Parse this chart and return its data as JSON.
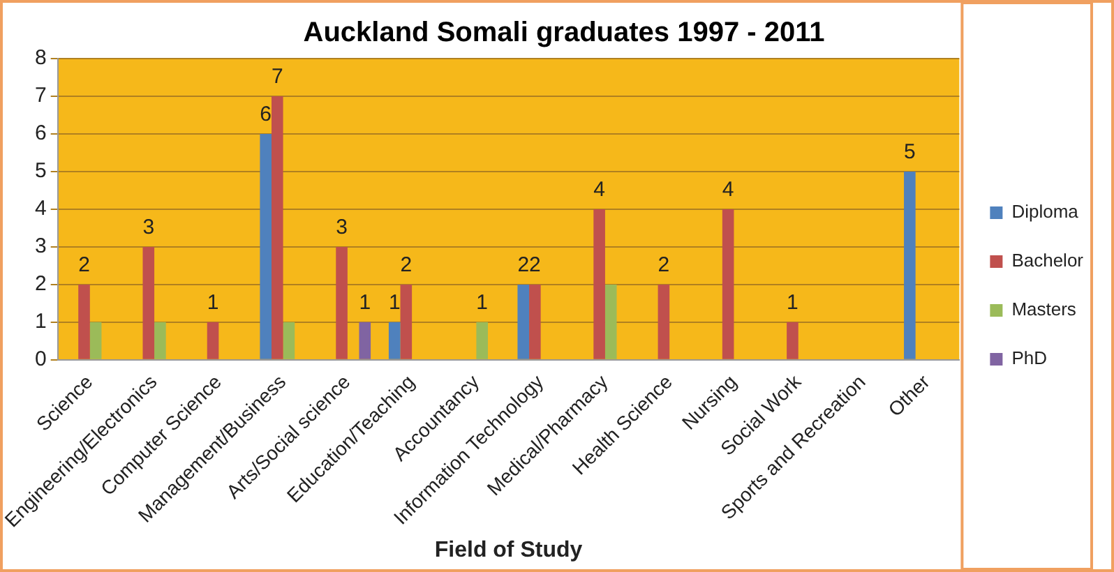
{
  "chart_data": {
    "type": "bar",
    "title": "Auckland Somali graduates 1997 - 2011",
    "xlabel": "Field of Study",
    "categories": [
      "Science",
      "Engineering/Electronics",
      "Computer Science",
      "Management/Business",
      "Arts/Social science",
      "Education/Teaching",
      "Accountancy",
      "Information Technology",
      "Medical/Pharmacy",
      "Health Science",
      "Nursing",
      "Social Work",
      "Sports and Recreation",
      "Other"
    ],
    "series": [
      {
        "name": "Diploma",
        "color": "#4f81bd",
        "values": [
          null,
          null,
          null,
          6,
          null,
          1,
          null,
          2,
          null,
          null,
          null,
          null,
          null,
          5
        ],
        "value_labels": [
          null,
          null,
          null,
          "6",
          null,
          "1",
          null,
          "2",
          null,
          null,
          null,
          null,
          null,
          "5"
        ]
      },
      {
        "name": "Bachelor",
        "color": "#c0504d",
        "values": [
          2,
          3,
          1,
          7,
          3,
          2,
          null,
          2,
          4,
          2,
          4,
          1,
          null,
          null
        ],
        "value_labels": [
          "2",
          "3",
          "1",
          "7",
          "3",
          "2",
          null,
          "2",
          "4",
          "2",
          "4",
          "1",
          null,
          null
        ]
      },
      {
        "name": "Masters",
        "color": "#9bbb59",
        "values": [
          1,
          1,
          null,
          1,
          null,
          null,
          1,
          null,
          2,
          null,
          null,
          null,
          null,
          null
        ],
        "value_labels": [
          null,
          null,
          null,
          null,
          null,
          null,
          "1",
          null,
          null,
          null,
          null,
          null,
          null,
          null
        ]
      },
      {
        "name": "PhD",
        "color": "#8064a2",
        "values": [
          null,
          null,
          null,
          null,
          1,
          null,
          null,
          null,
          null,
          null,
          null,
          null,
          null,
          null
        ],
        "value_labels": [
          null,
          null,
          null,
          null,
          "1",
          null,
          null,
          null,
          null,
          null,
          null,
          null,
          null,
          null
        ]
      }
    ],
    "ylim": [
      0,
      8
    ],
    "yticks": [
      0,
      1,
      2,
      3,
      4,
      5,
      6,
      7,
      8
    ],
    "grid": "y",
    "legend": "right"
  }
}
